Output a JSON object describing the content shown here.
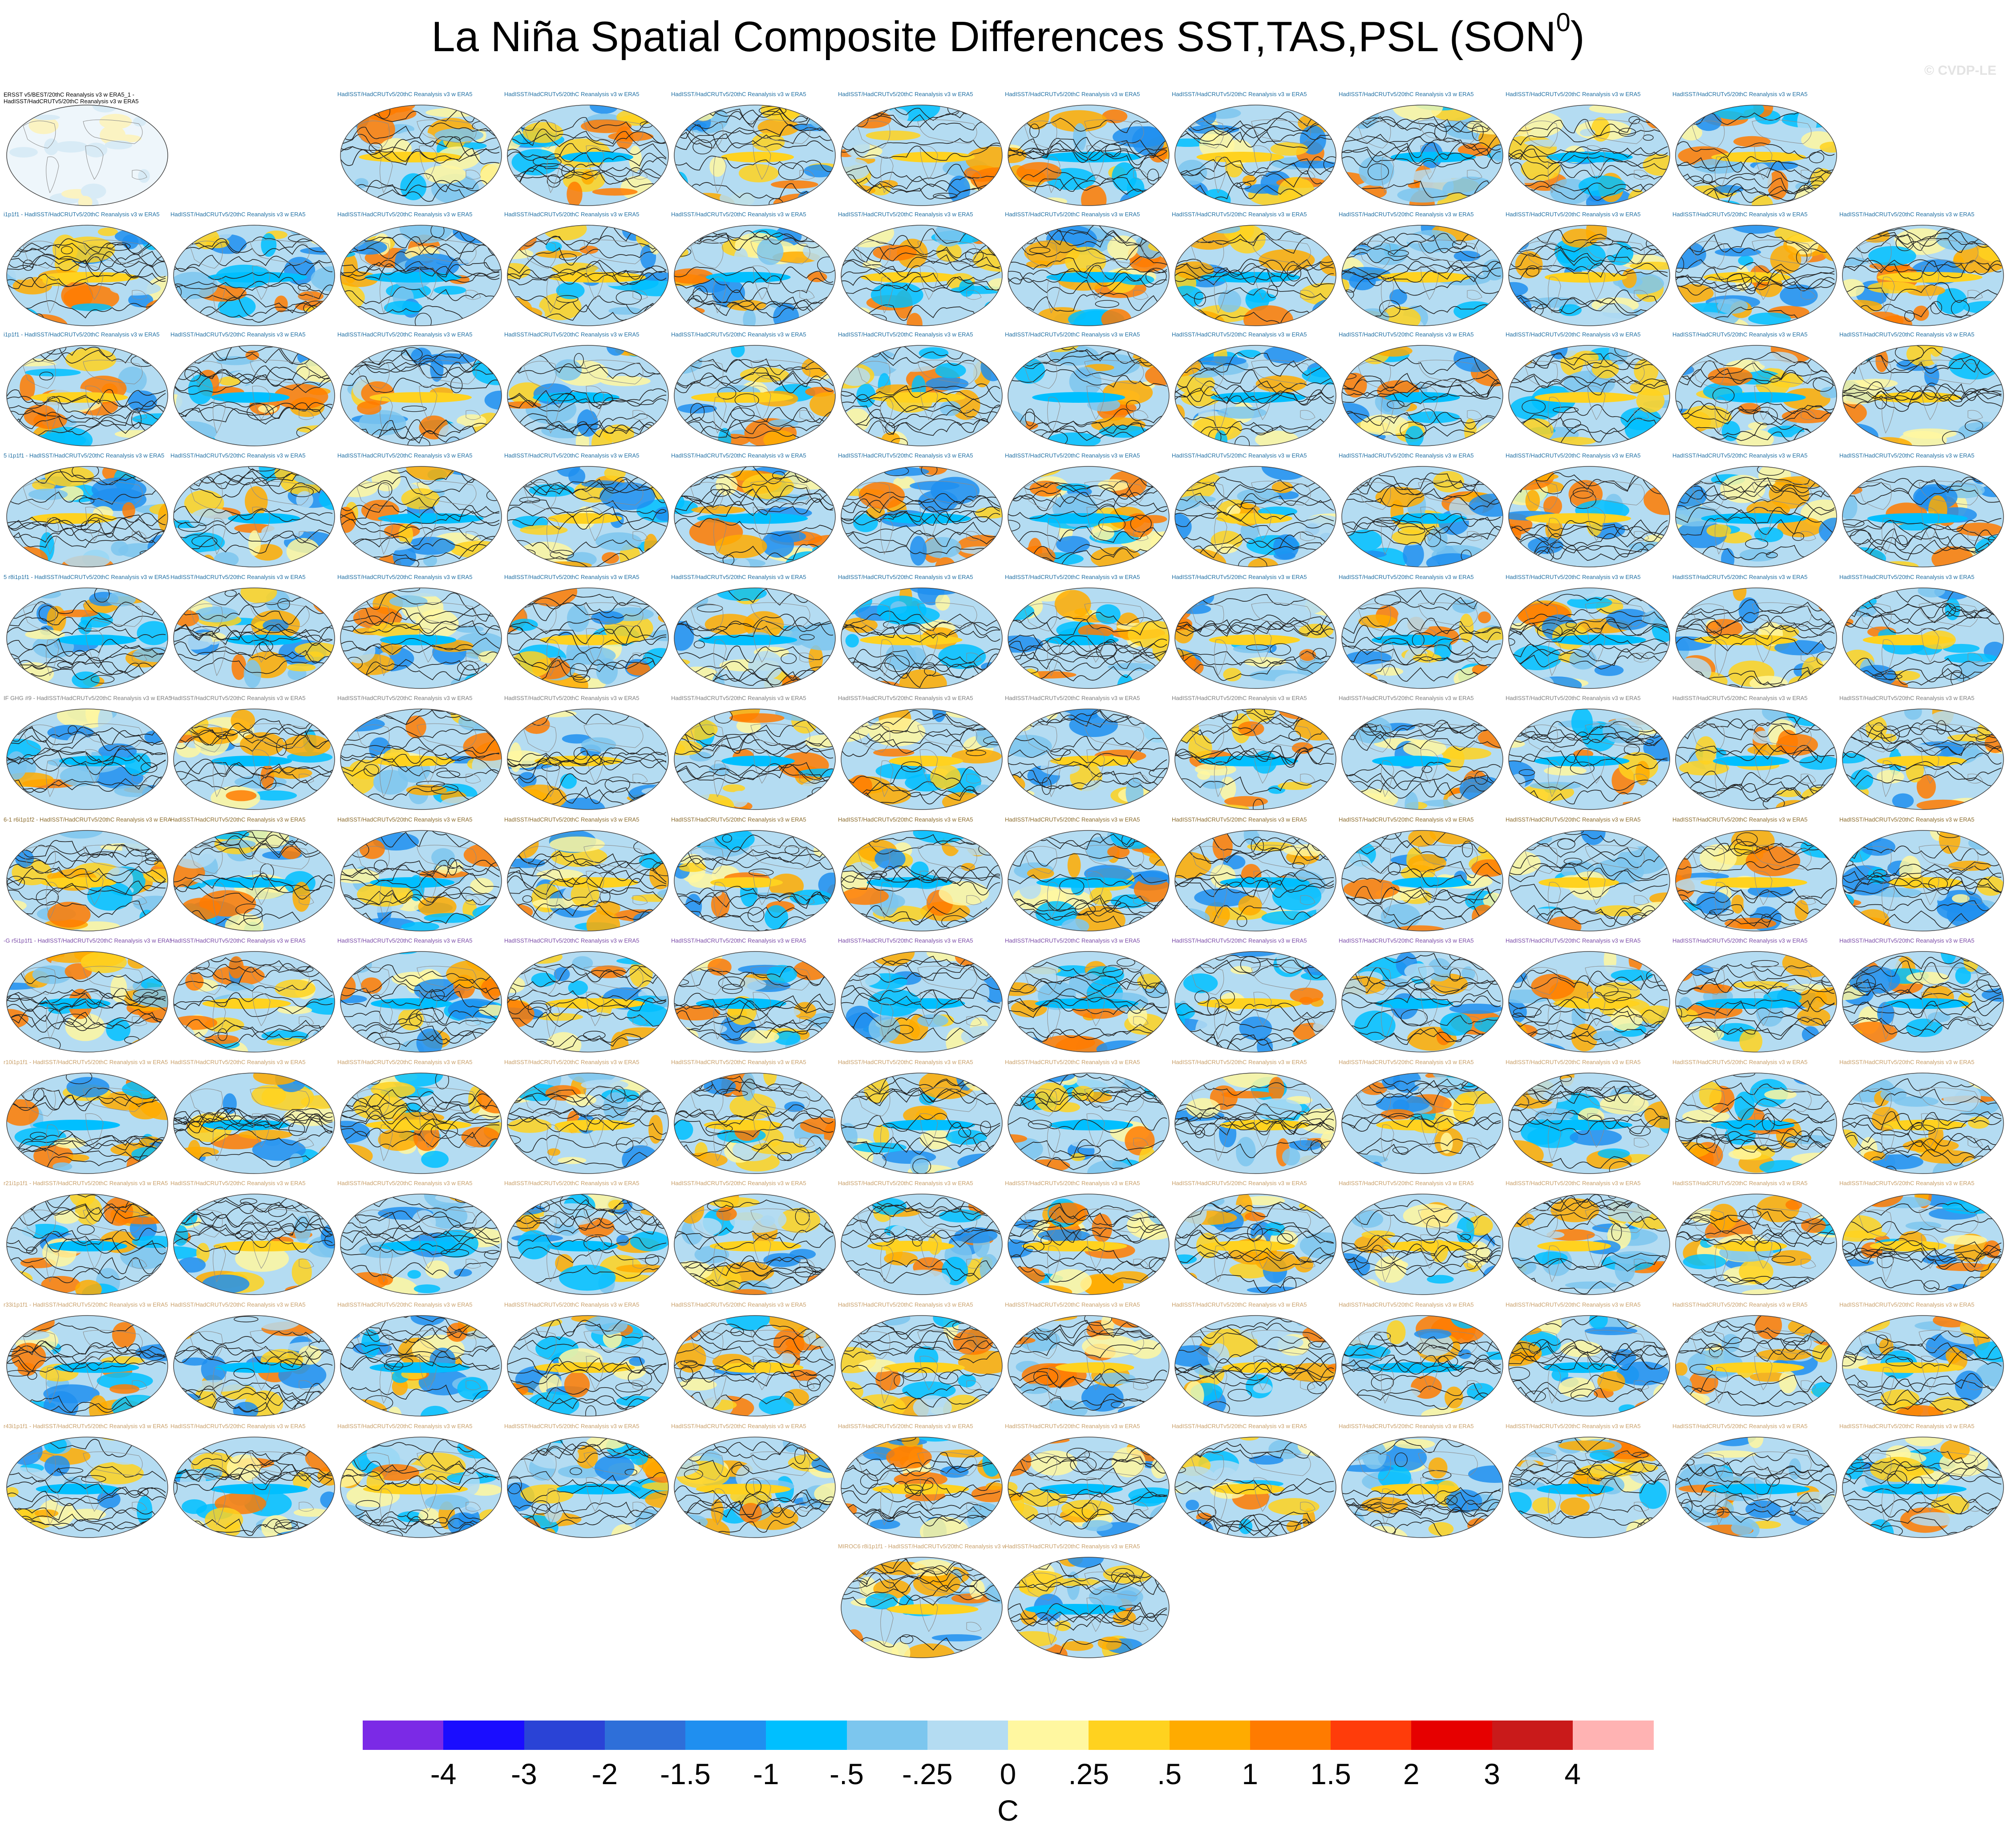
{
  "title": "La Niña Spatial Composite Differences SST,TAS,PSL (SON",
  "title_superscript": "0",
  "title_suffix": ")",
  "watermark": "© CVDP-LE",
  "observation_label": {
    "line1": "ERSST v5/BEST/20thC Reanalysis v3 w ERA5_1 -",
    "line2": "HadISST/HadCRUTv5/20thC Reanalysis v3 w ERA5"
  },
  "chart_data": {
    "type": "heatmap",
    "title": "La Niña Spatial Composite Differences SST,TAS,PSL (SON0)",
    "description_fields": [
      "SST",
      "TAS",
      "PSL"
    ],
    "panel_rows": 13,
    "panel_columns": 12,
    "panel_counts_per_row": [
      10,
      12,
      12,
      12,
      12,
      12,
      12,
      12,
      12,
      12,
      12,
      12,
      2
    ],
    "row_label_prefixes": [
      "",
      "i1p1f1",
      "i1p1f1",
      "5 i1p1f1",
      "5 r8i1p1f1",
      "IF GHG #9",
      "6-1 r6i1p1f2",
      "-G r5i1p1f1",
      "r10i1p1f1",
      "r21i1p1f1",
      "r33i1p1f1",
      "r43i1p1f1",
      "MIROC6 r8i1p1f1"
    ],
    "panel_label_text": "HadISST/HadCRUTv5/20thC Reanalysis v3 w ERA5",
    "row_label_colors": [
      "#1f6fa3",
      "#1f6fa3",
      "#1f6fa3",
      "#1f6fa3",
      "#1f6fa3",
      "#7e7e7e",
      "#8a6a2a",
      "#7a4aa8",
      "#c9a06a",
      "#c9a06a",
      "#c9a06a",
      "#c9a06a",
      "#c9a06a"
    ],
    "colorbar": {
      "units": "C",
      "tick_labels": [
        "-4",
        "-3",
        "-2",
        "-1.5",
        "-1",
        "-.5",
        "-.25",
        "0",
        ".25",
        ".5",
        "1",
        "1.5",
        "2",
        "3",
        "4"
      ],
      "colors": [
        "#7b2ae6",
        "#1a0dff",
        "#2a43d6",
        "#2e6fd9",
        "#1f8ff0",
        "#00bfff",
        "#7cc6ee",
        "#b4dcf2",
        "#fff7a0",
        "#ffd21f",
        "#ffab00",
        "#ff7b00",
        "#ff3c0a",
        "#e60000",
        "#c91a1a",
        "#ffb3b3"
      ]
    }
  }
}
